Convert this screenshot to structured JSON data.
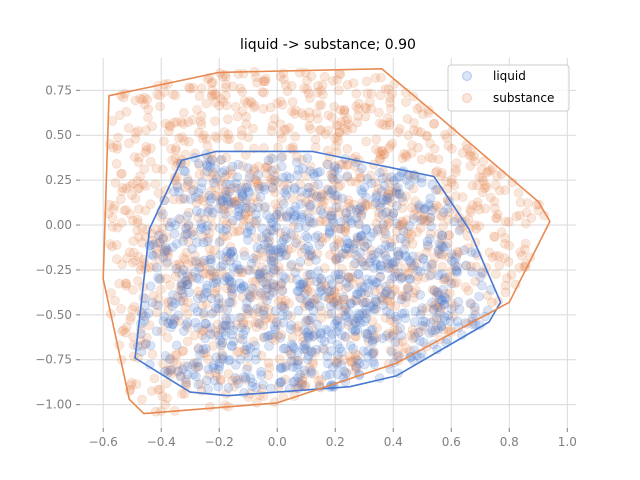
{
  "chart_data": {
    "type": "scatter",
    "title": "liquid -> substance; 0.90",
    "xlabel": "",
    "ylabel": "",
    "xlim": [
      -0.68,
      1.03
    ],
    "ylim": [
      -1.13,
      0.93
    ],
    "x_ticks": [
      -0.6,
      -0.4,
      -0.2,
      0.0,
      0.2,
      0.4,
      0.6,
      0.8,
      1.0
    ],
    "x_tick_labels": [
      "−0.6",
      "−0.4",
      "−0.2",
      "0.0",
      "0.2",
      "0.4",
      "0.6",
      "0.8",
      "1.0"
    ],
    "y_ticks": [
      0.75,
      0.5,
      0.25,
      0.0,
      -0.25,
      -0.5,
      -0.75,
      -1.0
    ],
    "y_tick_labels": [
      "0.75",
      "0.50",
      "0.25",
      "0.00",
      "−0.25",
      "−0.50",
      "−0.75",
      "−1.00"
    ],
    "grid": true,
    "legend_position": "top-right",
    "series": [
      {
        "name": "liquid",
        "color": "#4878cf",
        "marker_alpha": 0.2,
        "hull": [
          [
            -0.49,
            -0.74
          ],
          [
            -0.3,
            -0.93
          ],
          [
            -0.17,
            -0.95
          ],
          [
            0.25,
            -0.9
          ],
          [
            0.41,
            -0.84
          ],
          [
            0.73,
            -0.54
          ],
          [
            0.77,
            -0.43
          ],
          [
            0.66,
            -0.02
          ],
          [
            0.54,
            0.27
          ],
          [
            0.12,
            0.41
          ],
          [
            -0.21,
            0.41
          ],
          [
            -0.33,
            0.36
          ],
          [
            -0.44,
            -0.02
          ]
        ],
        "sample_count": 1000,
        "sample_seed": 7
      },
      {
        "name": "substance",
        "color": "#e8894f",
        "marker_alpha": 0.2,
        "hull": [
          [
            -0.6,
            -0.3
          ],
          [
            -0.51,
            -0.97
          ],
          [
            -0.46,
            -1.05
          ],
          [
            0.0,
            -0.99
          ],
          [
            0.41,
            -0.77
          ],
          [
            0.8,
            -0.43
          ],
          [
            0.94,
            0.02
          ],
          [
            0.9,
            0.13
          ],
          [
            0.56,
            0.6
          ],
          [
            0.36,
            0.87
          ],
          [
            -0.2,
            0.85
          ],
          [
            -0.58,
            0.72
          ]
        ],
        "sample_count": 1400,
        "sample_seed": 13
      }
    ]
  }
}
